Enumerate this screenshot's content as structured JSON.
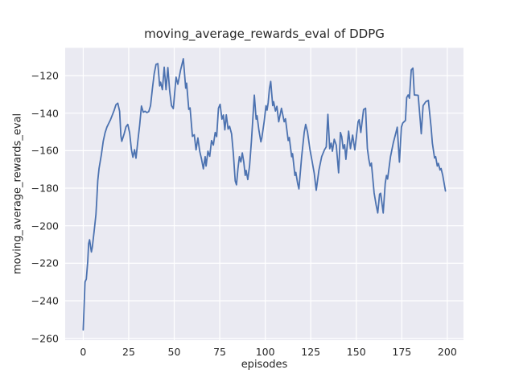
{
  "figure": {
    "title": "moving_average_rewards_eval of DDPG",
    "xlabel": "episodes",
    "ylabel": "moving_average_rewards_eval"
  },
  "chart_data": {
    "type": "line",
    "title": "moving_average_rewards_eval of DDPG",
    "xlabel": "episodes",
    "ylabel": "moving_average_rewards_eval",
    "xlim": [
      -9.9,
      208.9
    ],
    "ylim": [
      -261,
      -105.2
    ],
    "xticks": [
      0,
      25,
      50,
      75,
      100,
      125,
      150,
      175,
      200
    ],
    "xtick_labels": [
      "0",
      "25",
      "50",
      "75",
      "100",
      "125",
      "150",
      "175",
      "200"
    ],
    "yticks": [
      -260,
      -240,
      -220,
      -200,
      -180,
      -160,
      -140,
      -120
    ],
    "ytick_labels": [
      "−260",
      "−240",
      "−220",
      "−200",
      "−180",
      "−160",
      "−140",
      "−120"
    ],
    "grid": true,
    "legend_position": "none",
    "colors": {
      "line": "#4c72b0",
      "panel_bg": "#eaeaf2",
      "grid": "#ffffff",
      "text": "#262626",
      "figure_bg": "#ffffff"
    },
    "series": [
      {
        "name": "moving_average_rewards_eval",
        "points": [
          [
            0,
            -255.5
          ],
          [
            0.5,
            -243
          ],
          [
            1,
            -230
          ],
          [
            1.7,
            -228.5
          ],
          [
            2.5,
            -219
          ],
          [
            3,
            -209.5
          ],
          [
            3.5,
            -207.5
          ],
          [
            4.5,
            -214
          ],
          [
            5,
            -211.5
          ],
          [
            6,
            -203
          ],
          [
            7,
            -194
          ],
          [
            7.5,
            -185.5
          ],
          [
            8,
            -176
          ],
          [
            8.7,
            -169.5
          ],
          [
            10,
            -162
          ],
          [
            11,
            -155
          ],
          [
            12,
            -150.5
          ],
          [
            13,
            -147.5
          ],
          [
            14,
            -145.5
          ],
          [
            15,
            -143.5
          ],
          [
            16,
            -141
          ],
          [
            17,
            -138.5
          ],
          [
            18,
            -135.5
          ],
          [
            19,
            -134.7
          ],
          [
            20,
            -139
          ],
          [
            20.7,
            -152
          ],
          [
            21.2,
            -155
          ],
          [
            22.5,
            -151
          ],
          [
            23.5,
            -147.3
          ],
          [
            24.5,
            -146
          ],
          [
            25.5,
            -150.5
          ],
          [
            26.5,
            -159.5
          ],
          [
            27.3,
            -163.5
          ],
          [
            28.2,
            -159.5
          ],
          [
            29,
            -164
          ],
          [
            30,
            -155
          ],
          [
            31,
            -146.5
          ],
          [
            32,
            -136.2
          ],
          [
            33,
            -139.5
          ],
          [
            34,
            -139
          ],
          [
            35,
            -139.7
          ],
          [
            36,
            -139.2
          ],
          [
            37,
            -136
          ],
          [
            38,
            -127
          ],
          [
            39,
            -119
          ],
          [
            40,
            -114
          ],
          [
            41,
            -113.6
          ],
          [
            42,
            -125.5
          ],
          [
            42.5,
            -123.5
          ],
          [
            43.5,
            -127.5
          ],
          [
            44.5,
            -115.5
          ],
          [
            45.5,
            -127.5
          ],
          [
            46.5,
            -115.7
          ],
          [
            47.5,
            -128.2
          ],
          [
            48.5,
            -136
          ],
          [
            49.5,
            -137.6
          ],
          [
            51,
            -120.8
          ],
          [
            52,
            -124.6
          ],
          [
            53.5,
            -117
          ],
          [
            55,
            -111
          ],
          [
            56.3,
            -126.7
          ],
          [
            56.8,
            -124
          ],
          [
            58,
            -138
          ],
          [
            58.7,
            -137.2
          ],
          [
            60,
            -152.4
          ],
          [
            61,
            -151.5
          ],
          [
            62,
            -159.6
          ],
          [
            63,
            -153.2
          ],
          [
            64,
            -160.3
          ],
          [
            65,
            -164.5
          ],
          [
            66,
            -169.7
          ],
          [
            67,
            -163.2
          ],
          [
            67.5,
            -168.2
          ],
          [
            68.5,
            -160.3
          ],
          [
            69.5,
            -163
          ],
          [
            70.5,
            -154.6
          ],
          [
            71.5,
            -157
          ],
          [
            72.5,
            -150.3
          ],
          [
            73.3,
            -152.5
          ],
          [
            74.3,
            -137.4
          ],
          [
            75.2,
            -135.3
          ],
          [
            76.2,
            -143.2
          ],
          [
            77,
            -141
          ],
          [
            77.8,
            -148.9
          ],
          [
            78.6,
            -140.9
          ],
          [
            79.6,
            -148.5
          ],
          [
            80.4,
            -147
          ],
          [
            81.5,
            -151
          ],
          [
            82.5,
            -161.8
          ],
          [
            83.5,
            -176.1
          ],
          [
            84.2,
            -178.2
          ],
          [
            85,
            -169.6
          ],
          [
            85.8,
            -163.2
          ],
          [
            86.6,
            -166
          ],
          [
            87.4,
            -161.2
          ],
          [
            88.2,
            -166
          ],
          [
            89,
            -173.2
          ],
          [
            89.5,
            -170.5
          ],
          [
            90.4,
            -175.4
          ],
          [
            91.4,
            -168
          ],
          [
            92.4,
            -155
          ],
          [
            94,
            -130.4
          ],
          [
            95,
            -143.2
          ],
          [
            95.5,
            -141.4
          ],
          [
            96.5,
            -149
          ],
          [
            97.6,
            -155.3
          ],
          [
            98.1,
            -153.3
          ],
          [
            99.4,
            -144.6
          ],
          [
            100.4,
            -136
          ],
          [
            101,
            -138.4
          ],
          [
            101.6,
            -134.5
          ],
          [
            102.3,
            -127
          ],
          [
            103,
            -123.1
          ],
          [
            104.1,
            -136
          ],
          [
            104.6,
            -133.9
          ],
          [
            105.6,
            -138.9
          ],
          [
            106.4,
            -136.4
          ],
          [
            107.4,
            -144.6
          ],
          [
            108.9,
            -137.4
          ],
          [
            110.4,
            -144.6
          ],
          [
            111.1,
            -143
          ],
          [
            112.6,
            -154.6
          ],
          [
            113.2,
            -153
          ],
          [
            114.5,
            -163.2
          ],
          [
            115,
            -161.6
          ],
          [
            116.3,
            -173.2
          ],
          [
            116.8,
            -171.6
          ],
          [
            117.8,
            -177.5
          ],
          [
            118.5,
            -180.4
          ],
          [
            120,
            -163.2
          ],
          [
            121.4,
            -150.3
          ],
          [
            122.2,
            -146
          ],
          [
            123.2,
            -150
          ],
          [
            124.6,
            -159.6
          ],
          [
            125.8,
            -166
          ],
          [
            126.9,
            -172
          ],
          [
            128,
            -181.1
          ],
          [
            129.5,
            -170.3
          ],
          [
            131,
            -163.2
          ],
          [
            132.5,
            -159.6
          ],
          [
            133.5,
            -158
          ],
          [
            134.4,
            -140.6
          ],
          [
            135.4,
            -158.9
          ],
          [
            136.2,
            -156
          ],
          [
            136.9,
            -160.3
          ],
          [
            137.9,
            -153.9
          ],
          [
            139,
            -157
          ],
          [
            140.3,
            -171.8
          ],
          [
            141.3,
            -150.3
          ],
          [
            142,
            -152.5
          ],
          [
            142.8,
            -158.9
          ],
          [
            143.6,
            -156.8
          ],
          [
            144.3,
            -164.6
          ],
          [
            145.8,
            -149.6
          ],
          [
            146.8,
            -158.9
          ],
          [
            148,
            -151.7
          ],
          [
            149.2,
            -159.6
          ],
          [
            151,
            -144.6
          ],
          [
            151.6,
            -143.5
          ],
          [
            152.5,
            -150.3
          ],
          [
            154,
            -138.1
          ],
          [
            155.1,
            -137.4
          ],
          [
            156.1,
            -158.9
          ],
          [
            156.9,
            -164.6
          ],
          [
            157.6,
            -168.2
          ],
          [
            158.3,
            -166.6
          ],
          [
            159.8,
            -182.5
          ],
          [
            160.9,
            -188.9
          ],
          [
            161.8,
            -193.2
          ],
          [
            162.8,
            -183.2
          ],
          [
            163.4,
            -182.7
          ],
          [
            164.8,
            -193.2
          ],
          [
            165.9,
            -177.5
          ],
          [
            166.6,
            -173.2
          ],
          [
            167.2,
            -175.1
          ],
          [
            168.8,
            -163.2
          ],
          [
            170.3,
            -156
          ],
          [
            171.8,
            -150.3
          ],
          [
            172.5,
            -147.5
          ],
          [
            173.7,
            -166.1
          ],
          [
            174.8,
            -147.5
          ],
          [
            175.5,
            -145.3
          ],
          [
            177,
            -143.9
          ],
          [
            177.7,
            -131.7
          ],
          [
            178.5,
            -130.3
          ],
          [
            179.2,
            -132
          ],
          [
            180.2,
            -117
          ],
          [
            181.1,
            -116
          ],
          [
            181.9,
            -130.3
          ],
          [
            184,
            -130.5
          ],
          [
            185.2,
            -144.6
          ],
          [
            185.7,
            -151
          ],
          [
            186.7,
            -136
          ],
          [
            188.2,
            -133.9
          ],
          [
            189.6,
            -133.2
          ],
          [
            191.1,
            -147.5
          ],
          [
            191.8,
            -156
          ],
          [
            193,
            -163.9
          ],
          [
            193.6,
            -163.2
          ],
          [
            194.5,
            -168.2
          ],
          [
            195.1,
            -166.8
          ],
          [
            196,
            -170.3
          ],
          [
            196.6,
            -169.5
          ],
          [
            197.5,
            -173.2
          ],
          [
            199,
            -181.5
          ]
        ]
      }
    ]
  }
}
